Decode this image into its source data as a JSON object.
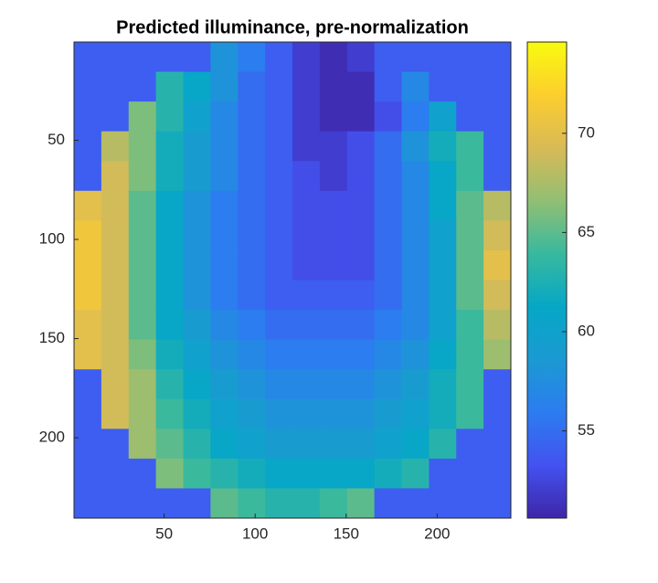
{
  "chart_data": {
    "type": "heatmap",
    "title": "Predicted illuminance, pre-normalization",
    "xbins": [
      0.5,
      15.5,
      30.5,
      45.5,
      60.5,
      75.5,
      90.5,
      105.5,
      120.5,
      135.5,
      150.5,
      165.5,
      180.5,
      195.5,
      210.5,
      225.5,
      240.5
    ],
    "ybins": [
      0.5,
      15.5,
      30.5,
      45.5,
      60.5,
      75.5,
      90.5,
      105.5,
      120.5,
      135.5,
      150.5,
      165.5,
      180.5,
      195.5,
      210.5,
      225.5,
      240.5
    ],
    "z": [
      [
        54,
        54,
        54,
        54,
        54,
        58,
        56,
        54,
        52,
        51,
        52,
        54,
        54,
        54,
        54,
        54
      ],
      [
        54,
        54,
        54,
        63,
        61,
        58,
        55,
        54,
        52,
        51,
        51,
        54,
        57,
        54,
        54,
        54
      ],
      [
        54,
        54,
        66,
        63,
        60,
        57,
        55,
        54,
        52,
        51,
        51,
        53,
        56,
        60,
        54,
        54
      ],
      [
        54,
        68,
        66,
        62,
        59,
        57,
        55,
        54,
        52,
        52,
        53,
        55,
        58,
        62,
        64,
        54
      ],
      [
        54,
        69,
        66,
        62,
        59,
        57,
        55,
        54,
        53,
        52,
        53,
        55,
        57,
        61,
        64,
        54
      ],
      [
        70,
        69,
        65,
        61,
        58,
        56,
        55,
        54,
        53,
        53,
        53,
        55,
        57,
        61,
        65,
        68
      ],
      [
        71,
        69,
        65,
        61,
        58,
        56,
        55,
        54,
        53,
        53,
        53,
        55,
        57,
        60,
        65,
        69
      ],
      [
        71,
        69,
        65,
        61,
        58,
        56,
        55,
        54,
        53,
        53,
        53,
        55,
        57,
        60,
        65,
        70
      ],
      [
        71,
        69,
        65,
        61,
        58,
        56,
        55,
        54,
        54,
        54,
        54,
        55,
        57,
        60,
        65,
        69
      ],
      [
        70,
        69,
        65,
        61,
        59,
        57,
        56,
        55,
        55,
        55,
        55,
        56,
        57,
        60,
        64,
        68
      ],
      [
        70,
        69,
        66,
        62,
        60,
        58,
        57,
        56,
        56,
        56,
        56,
        57,
        58,
        61,
        64,
        67
      ],
      [
        54,
        69,
        67,
        63,
        61,
        59,
        58,
        57,
        57,
        57,
        57,
        58,
        59,
        62,
        64,
        54
      ],
      [
        54,
        69,
        67,
        64,
        62,
        60,
        59,
        58,
        58,
        58,
        58,
        59,
        60,
        62,
        64,
        54
      ],
      [
        54,
        54,
        67,
        65,
        63,
        61,
        60,
        59,
        59,
        59,
        59,
        60,
        61,
        63,
        54,
        54
      ],
      [
        54,
        54,
        54,
        66,
        64,
        63,
        62,
        61,
        61,
        61,
        61,
        62,
        63,
        54,
        54,
        54
      ],
      [
        54,
        54,
        54,
        54,
        54,
        65,
        64,
        63,
        63,
        64,
        65,
        54,
        54,
        54,
        54,
        54
      ]
    ],
    "xlim": [
      0.5,
      240.5
    ],
    "ylim": [
      0.5,
      240.5
    ],
    "y_reversed": true,
    "xticks": [
      50,
      100,
      150,
      200
    ],
    "yticks": [
      50,
      100,
      150,
      200
    ],
    "clim": [
      50.6,
      74.6
    ],
    "cticks": [
      55,
      60,
      65,
      70
    ],
    "colormap": [
      "#3e26a8",
      "#4352f0",
      "#2c7cf0",
      "#1b9ad2",
      "#06a7c6",
      "#38b99e",
      "#92bf73",
      "#d9ba56",
      "#fcce2e",
      "#f9fb0e"
    ]
  }
}
